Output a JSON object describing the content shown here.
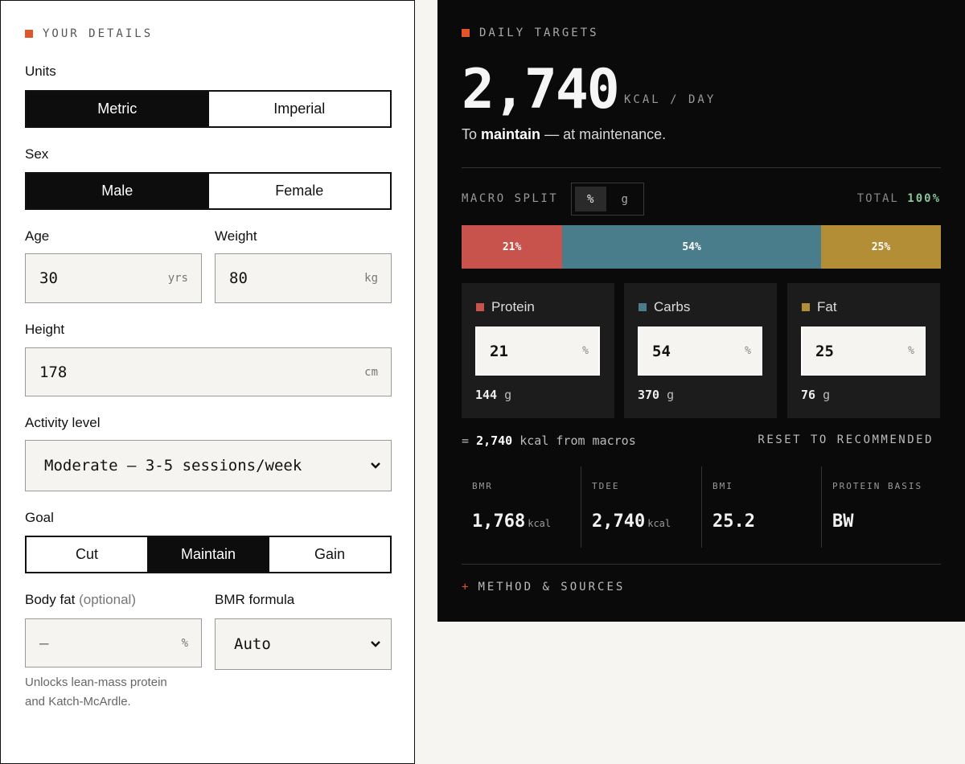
{
  "colors": {
    "accent": "#e0552a",
    "protein": "#c8524c",
    "carbs": "#4a7d8c",
    "fat": "#b48e36",
    "total_ok": "#8cc49a"
  },
  "details": {
    "section_title": "YOUR DETAILS",
    "units": {
      "label": "Units",
      "options": [
        "Metric",
        "Imperial"
      ],
      "selected": "Metric"
    },
    "sex": {
      "label": "Sex",
      "options": [
        "Male",
        "Female"
      ],
      "selected": "Male"
    },
    "age": {
      "label": "Age",
      "value": "30",
      "unit": "yrs"
    },
    "weight": {
      "label": "Weight",
      "value": "80",
      "unit": "kg"
    },
    "height": {
      "label": "Height",
      "value": "178",
      "unit": "cm"
    },
    "activity": {
      "label": "Activity level",
      "value": "Moderate — 3-5 sessions/week"
    },
    "goal": {
      "label": "Goal",
      "options": [
        "Cut",
        "Maintain",
        "Gain"
      ],
      "selected": "Maintain"
    },
    "body_fat": {
      "label": "Body fat",
      "optional": "(optional)",
      "value": "—",
      "unit": "%",
      "note_line1": "Unlocks lean-mass protein",
      "note_line2": "and Katch-McArdle."
    },
    "bmr_formula": {
      "label": "BMR formula",
      "value": "Auto"
    }
  },
  "targets": {
    "section_title": "DAILY TARGETS",
    "kcal": "2,740",
    "kcal_unit": "KCAL / DAY",
    "status_prefix": "To",
    "status_goal": "maintain",
    "status_suffix": "— at maintenance.",
    "macro_split_label": "MACRO SPLIT",
    "toggle": [
      "%",
      "g"
    ],
    "toggle_selected": "%",
    "total_label": "TOTAL",
    "total_value": "100%",
    "bar": [
      {
        "name": "Protein",
        "percent": 21,
        "label": "21%"
      },
      {
        "name": "Carbs",
        "percent": 54,
        "label": "54%"
      },
      {
        "name": "Fat",
        "percent": 25,
        "label": "25%"
      }
    ],
    "macros": [
      {
        "name": "Protein",
        "value": "21",
        "unit": "%",
        "grams": "144",
        "grams_unit": "g"
      },
      {
        "name": "Carbs",
        "value": "54",
        "unit": "%",
        "grams": "370",
        "grams_unit": "g"
      },
      {
        "name": "Fat",
        "value": "25",
        "unit": "%",
        "grams": "76",
        "grams_unit": "g"
      }
    ],
    "from_macros_prefix": "=",
    "from_macros_value": "2,740",
    "from_macros_suffix": "kcal from macros",
    "reset_label": "RESET TO RECOMMENDED",
    "stats": [
      {
        "label": "BMR",
        "value": "1,768",
        "unit": "kcal"
      },
      {
        "label": "TDEE",
        "value": "2,740",
        "unit": "kcal"
      },
      {
        "label": "BMI",
        "value": "25.2",
        "unit": ""
      },
      {
        "label": "PROTEIN BASIS",
        "value": "BW",
        "unit": ""
      }
    ],
    "method_label": "METHOD & SOURCES",
    "method_icon": "+"
  }
}
